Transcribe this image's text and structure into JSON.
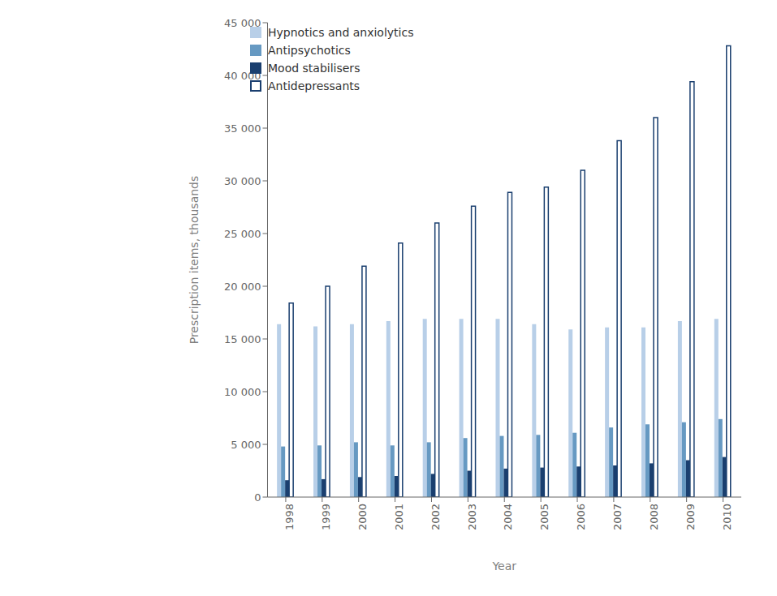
{
  "chart_data": {
    "type": "bar",
    "categories": [
      "1998",
      "1999",
      "2000",
      "2001",
      "2002",
      "2003",
      "2004",
      "2005",
      "2006",
      "2007",
      "2008",
      "2009",
      "2010"
    ],
    "series": [
      {
        "name": "Hypnotics and anxiolytics",
        "color": "#b8cfe8",
        "values": [
          16400,
          16200,
          16400,
          16700,
          16900,
          16900,
          16900,
          16400,
          15900,
          16100,
          16100,
          16700,
          16900
        ]
      },
      {
        "name": "Antipsychotics",
        "color": "#6699c2",
        "values": [
          4800,
          4900,
          5200,
          4900,
          5200,
          5600,
          5800,
          5900,
          6100,
          6600,
          6900,
          7100,
          7400
        ]
      },
      {
        "name": "Mood stabilisers",
        "color": "#1a3f6f",
        "values": [
          1600,
          1700,
          1900,
          2000,
          2200,
          2500,
          2700,
          2800,
          2900,
          3000,
          3200,
          3500,
          3800
        ]
      },
      {
        "name": "Antidepressants",
        "color": "#1a3f6f",
        "line_style": "solid",
        "values": [
          18400,
          20000,
          21900,
          24100,
          26000,
          27600,
          28900,
          29400,
          31000,
          33800,
          36000,
          39400,
          42800
        ]
      }
    ],
    "xlabel": "Year",
    "ylabel": "Prescription items, thousands",
    "ylim": [
      0,
      45000
    ],
    "yticks": [
      0,
      {
        "value": 5000,
        "label": "5 000"
      },
      {
        "value": 10000,
        "label": "10 000"
      },
      {
        "value": 15000,
        "label": "15 000"
      },
      {
        "value": 20000,
        "label": "20 000"
      },
      {
        "value": 25000,
        "label": "25 000"
      },
      {
        "value": 30000,
        "label": "30 000"
      },
      {
        "value": 35000,
        "label": "35 000"
      },
      {
        "value": 40000,
        "label": "40 000"
      },
      {
        "value": 45000,
        "label": "45 000"
      }
    ],
    "legend": "upper left",
    "grid": false
  }
}
